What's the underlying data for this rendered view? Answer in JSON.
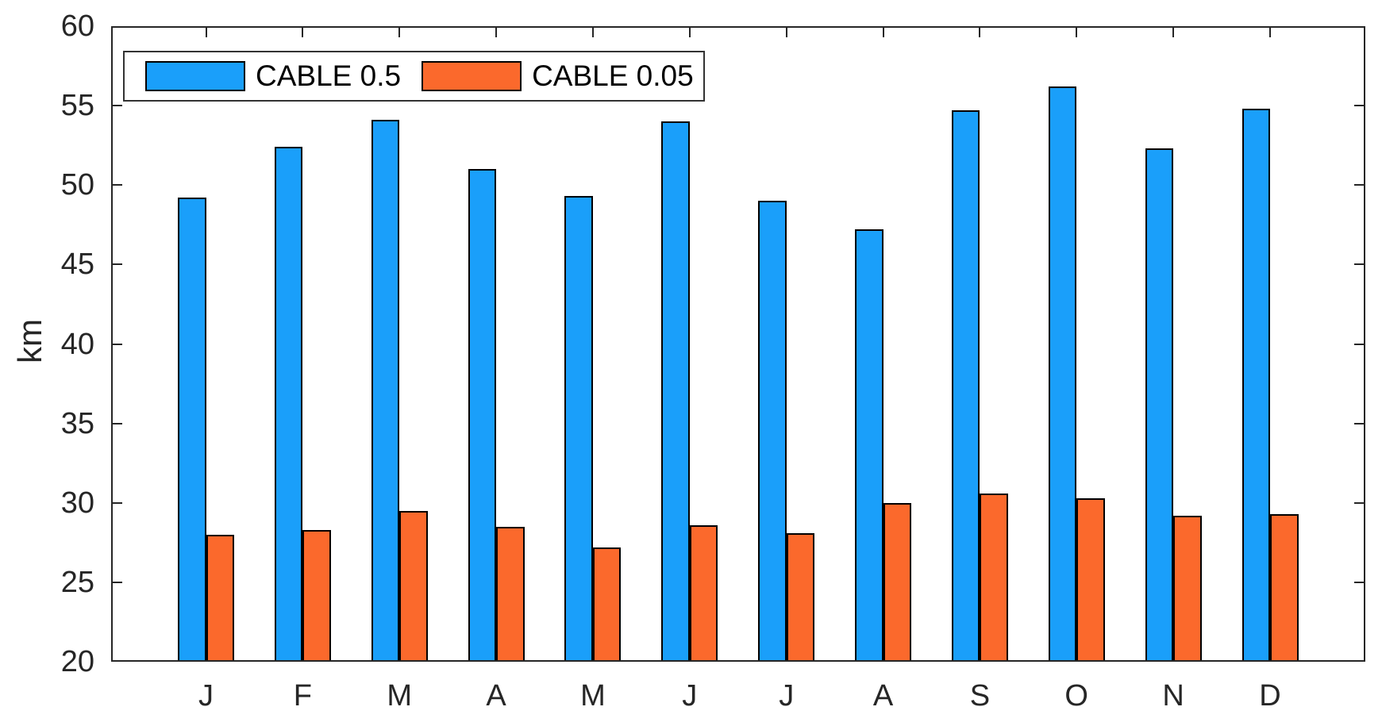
{
  "chart_data": {
    "type": "bar",
    "title": "",
    "xlabel": "",
    "ylabel": "km",
    "categories": [
      "J",
      "F",
      "M",
      "A",
      "M",
      "J",
      "J",
      "A",
      "S",
      "O",
      "N",
      "D"
    ],
    "series": [
      {
        "name": "CABLE 0.5",
        "color": "#1A9FFA",
        "values": [
          49.2,
          52.4,
          54.1,
          51.0,
          49.3,
          54.0,
          49.0,
          47.2,
          54.7,
          56.2,
          52.3,
          54.8
        ]
      },
      {
        "name": "CABLE 0.05",
        "color": "#FB692C",
        "values": [
          28.0,
          28.3,
          29.5,
          28.5,
          27.2,
          28.6,
          28.1,
          30.0,
          30.6,
          30.3,
          29.2,
          29.3
        ]
      }
    ],
    "ylim": [
      20,
      60
    ],
    "yticks": [
      20,
      25,
      30,
      35,
      40,
      45,
      50,
      55,
      60
    ],
    "bar_edge_color": "#000000",
    "axis_color": "#262626",
    "grid": false,
    "legend_position": "inside-top-left",
    "tick_direction": "in"
  }
}
